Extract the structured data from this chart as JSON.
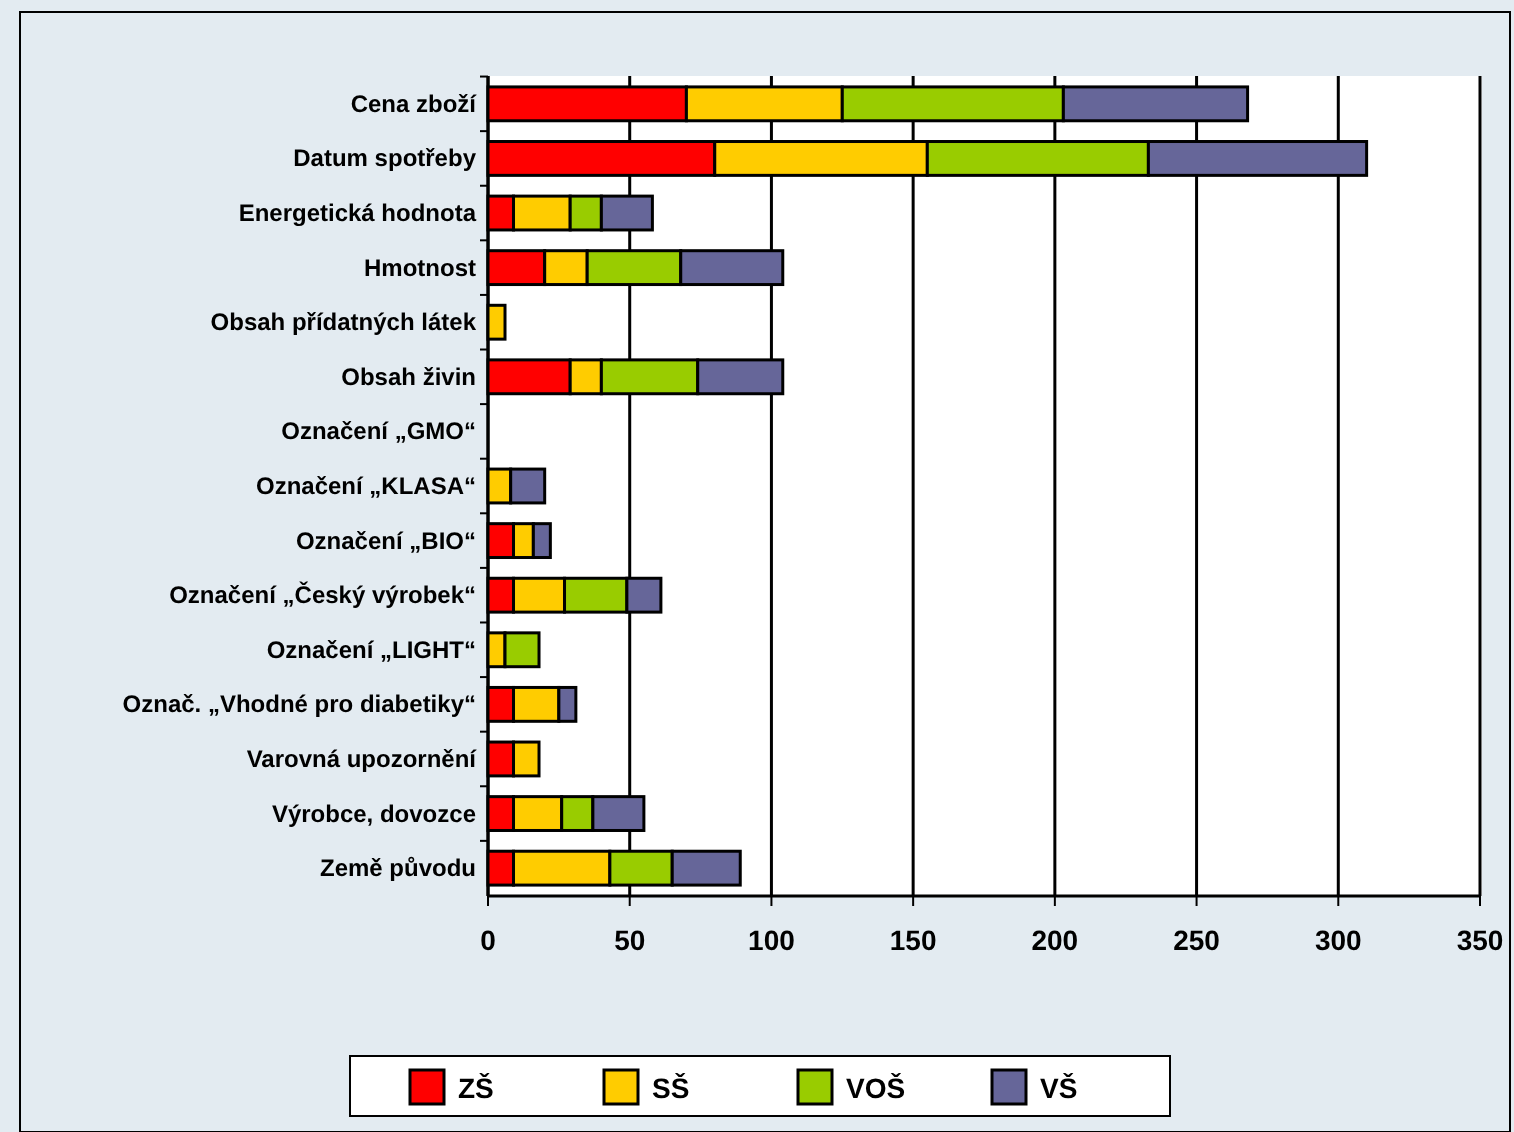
{
  "chart_data": {
    "type": "bar",
    "orientation": "horizontal",
    "stacked": true,
    "categories": [
      "Cena zboží",
      "Datum spotřeby",
      "Energetická hodnota",
      "Hmotnost",
      "Obsah přídatných látek",
      "Obsah živin",
      "Označení „GMO“",
      "Označení „KLASA“",
      "Označení „BIO“",
      "Označení „Český výrobek“",
      "Označení „LIGHT“",
      "Označ. „Vhodné pro diabetiky“",
      "Varovná upozornění",
      "Výrobce, dovozce",
      "Země původu"
    ],
    "series": [
      {
        "name": "ZŠ",
        "color": "#ff0000",
        "values": [
          70,
          80,
          9,
          20,
          0,
          29,
          0,
          0,
          9,
          9,
          0,
          9,
          9,
          9,
          9
        ]
      },
      {
        "name": "SŠ",
        "color": "#ffcc00",
        "values": [
          55,
          75,
          20,
          15,
          6,
          11,
          0,
          8,
          7,
          18,
          6,
          16,
          9,
          17,
          34
        ]
      },
      {
        "name": "VOŠ",
        "color": "#99cc00",
        "values": [
          78,
          78,
          11,
          33,
          0,
          34,
          0,
          0,
          0,
          22,
          12,
          0,
          0,
          11,
          22
        ]
      },
      {
        "name": "VŠ",
        "color": "#666699",
        "values": [
          65,
          77,
          18,
          36,
          0,
          30,
          0,
          12,
          6,
          12,
          0,
          6,
          0,
          18,
          24
        ]
      }
    ],
    "xlim": [
      0,
      350
    ],
    "xticks": [
      0,
      50,
      100,
      150,
      200,
      250,
      300,
      350
    ],
    "grid": "x",
    "legend": "bottom"
  }
}
